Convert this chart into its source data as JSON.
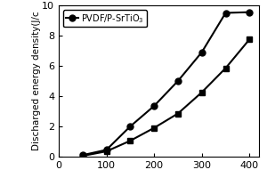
{
  "line1_label": "PVDF/P-SrTiO$_3$",
  "line1_x": [
    50,
    100,
    150,
    200,
    250,
    300,
    350,
    400
  ],
  "line1_y": [
    0.1,
    0.45,
    2.0,
    3.35,
    5.0,
    6.9,
    9.5,
    9.55
  ],
  "line1_marker": "o",
  "line1_color": "black",
  "line2_x": [
    50,
    100,
    150,
    200,
    250,
    300,
    350,
    400
  ],
  "line2_y": [
    0.05,
    0.35,
    1.05,
    1.9,
    2.85,
    4.25,
    5.85,
    7.75
  ],
  "line2_marker": "s",
  "line2_color": "black",
  "ylabel": "Discharged energy density(J/c",
  "xlim": [
    0,
    420
  ],
  "ylim": [
    0,
    10
  ],
  "xticks": [
    0,
    100,
    200,
    300,
    400
  ],
  "yticks": [
    0,
    2,
    4,
    6,
    8,
    10
  ],
  "legend_loc": "upper left",
  "background_color": "#ffffff",
  "linewidth": 1.5,
  "markersize": 5,
  "tick_fontsize": 8,
  "ylabel_fontsize": 7.5
}
